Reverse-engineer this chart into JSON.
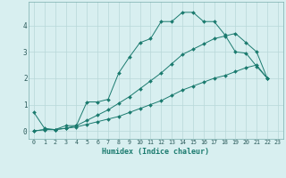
{
  "xlabel": "Humidex (Indice chaleur)",
  "background_color": "#d8eff0",
  "grid_color": "#b8d8d8",
  "line_color": "#1a7a6e",
  "xlim": [
    -0.5,
    23.5
  ],
  "ylim": [
    -0.3,
    4.9
  ],
  "xticks": [
    0,
    1,
    2,
    3,
    4,
    5,
    6,
    7,
    8,
    9,
    10,
    11,
    12,
    13,
    14,
    15,
    16,
    17,
    18,
    19,
    20,
    21,
    22,
    23
  ],
  "yticks": [
    0,
    1,
    2,
    3,
    4
  ],
  "series": [
    [
      0.7,
      0.1,
      0.05,
      0.2,
      0.2,
      1.1,
      1.1,
      1.2,
      2.2,
      2.8,
      3.35,
      3.5,
      4.15,
      4.15,
      4.5,
      4.5,
      4.15,
      4.15,
      3.65,
      3.0,
      2.95,
      2.45,
      2.0
    ],
    [
      0.0,
      0.05,
      0.05,
      0.1,
      0.15,
      0.25,
      0.35,
      0.45,
      0.55,
      0.7,
      0.85,
      1.0,
      1.15,
      1.35,
      1.55,
      1.7,
      1.85,
      2.0,
      2.1,
      2.25,
      2.4,
      2.5,
      2.0
    ],
    [
      0.0,
      0.05,
      0.05,
      0.1,
      0.2,
      0.4,
      0.6,
      0.8,
      1.05,
      1.3,
      1.6,
      1.9,
      2.2,
      2.55,
      2.9,
      3.1,
      3.3,
      3.5,
      3.6,
      3.7,
      3.35,
      3.0,
      2.0
    ]
  ]
}
